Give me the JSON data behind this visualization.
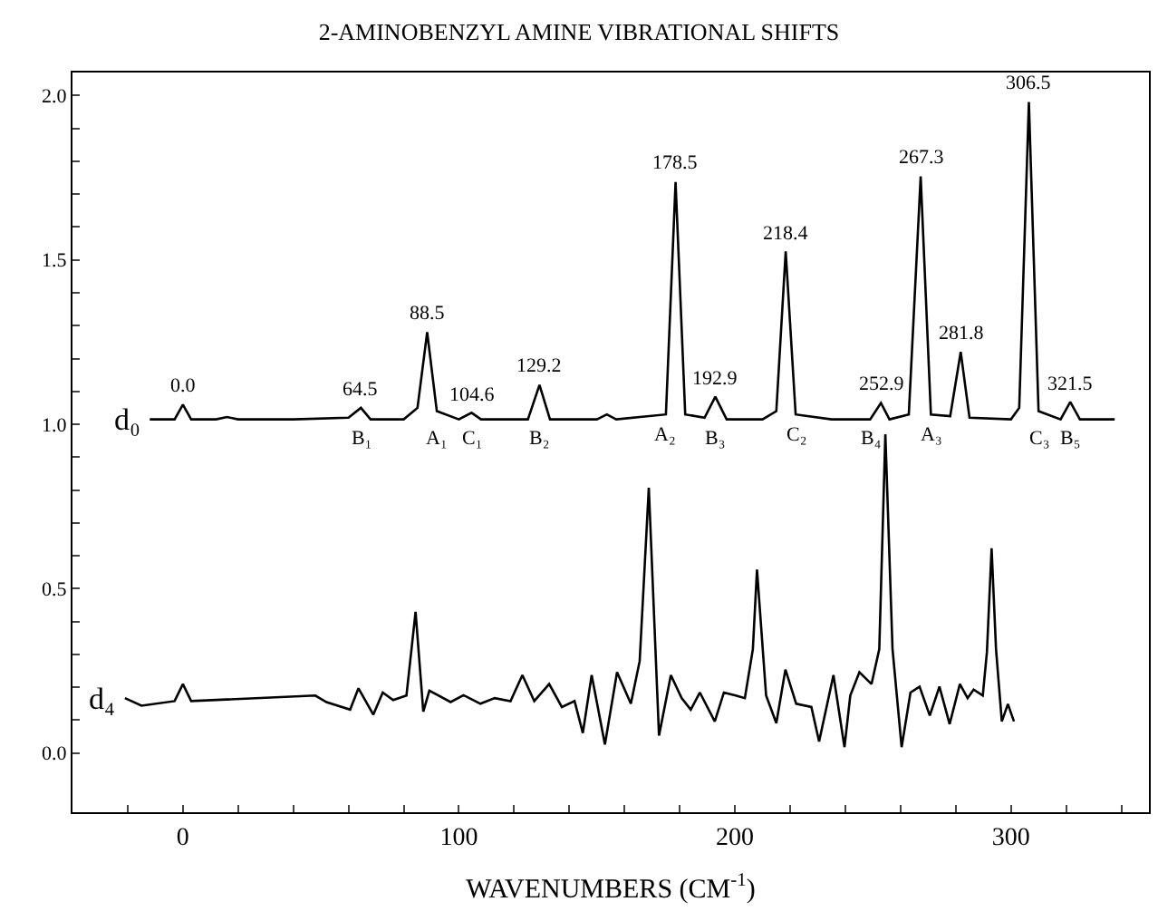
{
  "chart_data": {
    "type": "line",
    "title": "2-AMINOBENZYL AMINE VIBRATIONAL SHIFTS",
    "xlabel": "WAVENUMBERS (CM$^{-1}$)",
    "xlim": [
      -40,
      350
    ],
    "ylim": [
      -0.18,
      2.07
    ],
    "xticks": [
      {
        "value": -20,
        "label": null
      },
      0,
      {
        "value": 20,
        "label": null
      },
      {
        "value": 40,
        "label": null
      },
      {
        "value": 60,
        "label": null
      },
      {
        "value": 80,
        "label": null
      },
      100,
      {
        "value": 120,
        "label": null
      },
      {
        "value": 140,
        "label": null
      },
      {
        "value": 160,
        "label": null
      },
      {
        "value": 180,
        "label": null
      },
      200,
      {
        "value": 220,
        "label": null
      },
      {
        "value": 240,
        "label": null
      },
      {
        "value": 260,
        "label": null
      },
      {
        "value": 280,
        "label": null
      },
      300,
      {
        "value": 320,
        "label": null
      },
      {
        "value": 340,
        "label": null
      }
    ],
    "yticks": [
      {
        "value": 0,
        "label": "0.0"
      },
      {
        "value": 0.1,
        "label": null
      },
      {
        "value": 0.2,
        "label": null
      },
      {
        "value": 0.3,
        "label": null
      },
      {
        "value": 0.4,
        "label": null
      },
      0.5,
      {
        "value": 0.6,
        "label": null
      },
      {
        "value": 0.7,
        "label": null
      },
      {
        "value": 0.8,
        "label": null
      },
      {
        "value": 0.9,
        "label": null
      },
      {
        "value": 1,
        "label": "1.0"
      },
      {
        "value": 1.1,
        "label": null
      },
      {
        "value": 1.2,
        "label": null
      },
      {
        "value": 1.3,
        "label": null
      },
      {
        "value": 1.4,
        "label": null
      },
      1.5,
      {
        "value": 1.6,
        "label": null
      },
      {
        "value": 1.7,
        "label": null
      },
      {
        "value": 1.8,
        "label": null
      },
      {
        "value": 1.9,
        "label": null
      },
      {
        "value": 2,
        "label": "2.0"
      }
    ],
    "legend": false,
    "marker": "none",
    "line_style": "solid",
    "series": [
      {
        "name": "d₀",
        "color": "#000000",
        "x": [
          -12,
          -3,
          0,
          3,
          12,
          16,
          20,
          40,
          60,
          64.5,
          68,
          80,
          85,
          88.5,
          92,
          100,
          104.6,
          108,
          125,
          129.2,
          133,
          150,
          153.6,
          157,
          175,
          178.5,
          182,
          189,
          192.9,
          197,
          210,
          215,
          218.4,
          222,
          235,
          249,
          252.9,
          256,
          263,
          267.3,
          271,
          278,
          281.8,
          285,
          300,
          303,
          306.5,
          310,
          318,
          321.5,
          325,
          337.6
        ],
        "values": [
          1.015,
          1.015,
          1.06,
          1.015,
          1.015,
          1.022,
          1.015,
          1.015,
          1.02,
          1.05,
          1.015,
          1.015,
          1.05,
          1.28,
          1.04,
          1.015,
          1.035,
          1.015,
          1.015,
          1.12,
          1.015,
          1.015,
          1.03,
          1.015,
          1.03,
          1.737,
          1.03,
          1.02,
          1.084,
          1.015,
          1.015,
          1.04,
          1.526,
          1.03,
          1.015,
          1.015,
          1.065,
          1.015,
          1.03,
          1.754,
          1.03,
          1.025,
          1.22,
          1.02,
          1.015,
          1.05,
          1.98,
          1.04,
          1.015,
          1.068,
          1.015,
          1.015
        ]
      },
      {
        "name": "d₄",
        "color": "#000000",
        "x": [
          -21,
          -15,
          -3,
          0,
          3,
          48,
          52,
          60.6,
          63.6,
          69,
          72.4,
          76.2,
          81,
          84.3,
          87.1,
          89.3,
          97,
          101.7,
          107.8,
          113,
          118.7,
          123,
          127.3,
          132.7,
          137.3,
          141.9,
          144.9,
          148.1,
          152.9,
          157.3,
          162.3,
          165.5,
          168.8,
          172.5,
          176.8,
          180.7,
          184,
          187.3,
          192.7,
          196,
          200.3,
          203.6,
          206.5,
          208,
          211.3,
          215,
          218.3,
          222.2,
          227.7,
          230.5,
          235.7,
          239.7,
          241.8,
          245.1,
          249.5,
          252.3,
          254.5,
          257.1,
          260.4,
          263.6,
          266.9,
          270.6,
          274.1,
          277.8,
          281.5,
          284.3,
          286.5,
          289.8,
          291.3,
          293,
          294.6,
          296.7,
          298.9,
          301.1
        ],
        "values": [
          0.167,
          0.144,
          0.158,
          0.21,
          0.158,
          0.175,
          0.155,
          0.132,
          0.197,
          0.117,
          0.184,
          0.161,
          0.175,
          0.43,
          0.126,
          0.19,
          0.155,
          0.176,
          0.15,
          0.167,
          0.158,
          0.237,
          0.158,
          0.21,
          0.14,
          0.158,
          0.061,
          0.237,
          0.026,
          0.246,
          0.15,
          0.28,
          0.807,
          0.053,
          0.237,
          0.167,
          0.132,
          0.184,
          0.096,
          0.184,
          0.175,
          0.167,
          0.316,
          0.558,
          0.175,
          0.091,
          0.254,
          0.15,
          0.14,
          0.035,
          0.237,
          0.018,
          0.175,
          0.246,
          0.21,
          0.316,
          0.97,
          0.316,
          0.018,
          0.184,
          0.202,
          0.114,
          0.202,
          0.088,
          0.21,
          0.167,
          0.193,
          0.175,
          0.307,
          0.623,
          0.316,
          0.096,
          0.149,
          0.096
        ]
      }
    ],
    "annotations": [
      {
        "text": "0.0",
        "x": 0,
        "y": 1.06
      },
      {
        "text": "64.5",
        "x": 64.5,
        "y": 1.05
      },
      {
        "text": "88.5",
        "x": 88.5,
        "y": 1.28
      },
      {
        "text": "104.6",
        "x": 104.6,
        "y": 1.035
      },
      {
        "text": "129.2",
        "x": 129.2,
        "y": 1.12
      },
      {
        "text": "178.5",
        "x": 178.5,
        "y": 1.737
      },
      {
        "text": "192.9",
        "x": 192.9,
        "y": 1.084
      },
      {
        "text": "218.4",
        "x": 218.4,
        "y": 1.526
      },
      {
        "text": "252.9",
        "x": 252.9,
        "y": 1.065
      },
      {
        "text": "267.3",
        "x": 267.3,
        "y": 1.754
      },
      {
        "text": "281.8",
        "x": 281.8,
        "y": 1.22
      },
      {
        "text": "306.5",
        "x": 306.5,
        "y": 1.98
      },
      {
        "text": "321.5",
        "x": 321.5,
        "y": 1.068
      },
      {
        "text": "B₁",
        "x": 64.5,
        "y": 1.05
      },
      {
        "text": "A₁",
        "x": 92,
        "y": 1.04
      },
      {
        "text": "C₁",
        "x": 104.6,
        "y": 1.035
      },
      {
        "text": "B₂",
        "x": 129.2,
        "y": 1.12
      },
      {
        "text": "A₂",
        "x": 175,
        "y": 1.03
      },
      {
        "text": "B₃",
        "x": 192.9,
        "y": 1.084
      },
      {
        "text": "C₂",
        "x": 222,
        "y": 1.03
      },
      {
        "text": "B₄",
        "x": 249,
        "y": 1.015
      },
      {
        "text": "A₃",
        "x": 271,
        "y": 1.03
      },
      {
        "text": "C₃",
        "x": 310,
        "y": 1.04
      },
      {
        "text": "B₅",
        "x": 321.5,
        "y": 1.068
      }
    ]
  }
}
